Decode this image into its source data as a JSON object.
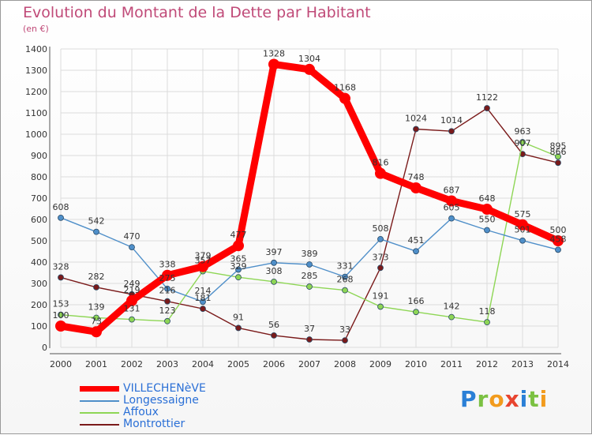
{
  "title": "Evolution du Montant de la Dette par Habitant",
  "subtitle": "(en €)",
  "logo_text": "Proxiti",
  "chart_data": {
    "type": "line",
    "x": [
      "2000",
      "2001",
      "2002",
      "2003",
      "2004",
      "2005",
      "2006",
      "2007",
      "2008",
      "2009",
      "2010",
      "2011",
      "2012",
      "2013",
      "2014"
    ],
    "ylim": [
      0,
      1400
    ],
    "yticks": [
      0,
      100,
      200,
      300,
      400,
      500,
      600,
      700,
      800,
      900,
      1000,
      1100,
      1200,
      1300,
      1400
    ],
    "grid": true,
    "legend_position": "bottom-left",
    "series": [
      {
        "name": "VILLECHENèVE",
        "color": "#ff0000",
        "values": [
          100,
          73,
          219,
          338,
          379,
          477,
          1328,
          1304,
          1168,
          816,
          748,
          687,
          648,
          575,
          500
        ]
      },
      {
        "name": "Longessaigne",
        "color": "#4f8fc9",
        "values": [
          608,
          542,
          470,
          275,
          214,
          365,
          397,
          389,
          331,
          508,
          451,
          605,
          550,
          501,
          458
        ]
      },
      {
        "name": "Affoux",
        "color": "#8ed655",
        "values": [
          153,
          139,
          131,
          123,
          357,
          329,
          308,
          285,
          268,
          191,
          166,
          142,
          118,
          963,
          895
        ]
      },
      {
        "name": "Montrottier",
        "color": "#7a1a1a",
        "values": [
          328,
          282,
          249,
          216,
          181,
          91,
          56,
          37,
          33,
          373,
          1024,
          1014,
          1122,
          907,
          866
        ]
      }
    ]
  }
}
